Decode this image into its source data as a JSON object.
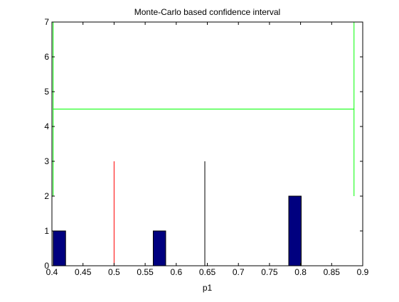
{
  "chart_data": {
    "type": "bar",
    "title": "Monte-Carlo based confidence interval",
    "xlabel": "p1",
    "ylabel": "",
    "xlim": [
      0.4,
      0.9
    ],
    "ylim": [
      0,
      7
    ],
    "xticks": [
      "0.4",
      "0.45",
      "0.5",
      "0.55",
      "0.6",
      "0.65",
      "0.7",
      "0.75",
      "0.8",
      "0.85",
      "0.9"
    ],
    "yticks": [
      "0",
      "1",
      "2",
      "3",
      "4",
      "5",
      "6",
      "7"
    ],
    "grid": false,
    "bars": [
      {
        "x0": 0.402,
        "x1": 0.422,
        "height": 1
      },
      {
        "x0": 0.563,
        "x1": 0.583,
        "height": 1
      },
      {
        "x0": 0.781,
        "x1": 0.801,
        "height": 2
      }
    ],
    "bar_color": "#00007f",
    "reference_lines": [
      {
        "x": 0.5,
        "y0": 0,
        "y1": 3,
        "color": "#ff0000"
      },
      {
        "x": 0.646,
        "y0": 0,
        "y1": 3,
        "color": "#000000"
      }
    ],
    "interval": {
      "lower": 0.402,
      "upper": 0.886,
      "level_y": 4.5,
      "lower_y_range": [
        2,
        7
      ],
      "upper_y_range": [
        2,
        7
      ],
      "color": "#00ff00"
    }
  }
}
